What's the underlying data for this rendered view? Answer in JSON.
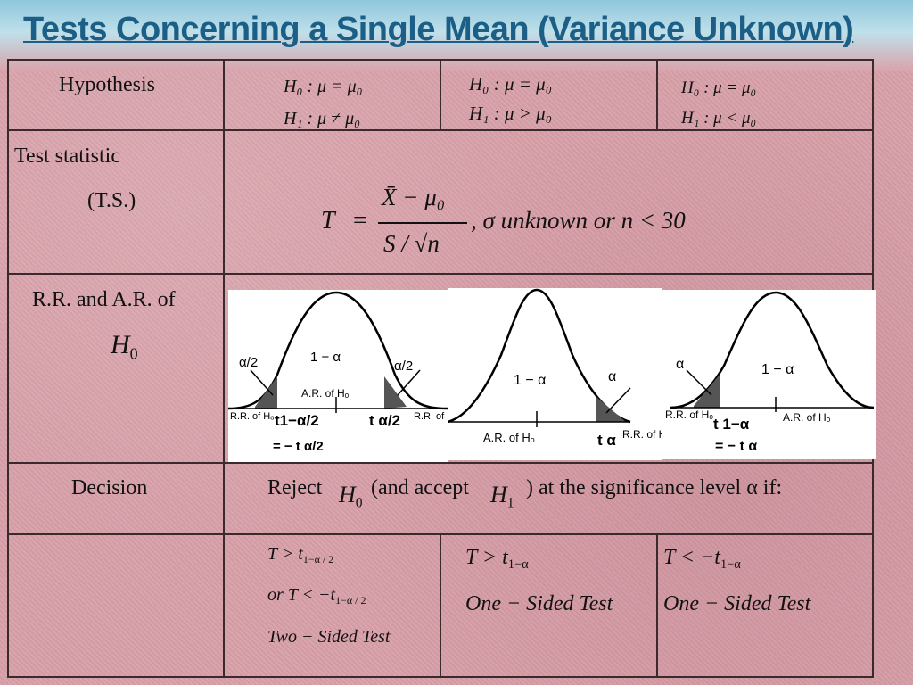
{
  "title": "Tests Concerning a Single Mean (Variance Unknown)",
  "rows": {
    "hypothesis_label": "Hypothesis",
    "test_statistic_label": "Test statistic",
    "ts_abbrev": "(T.S.)",
    "rr_ar_label": "R.R. and A.R. of",
    "decision_label": "Decision"
  },
  "hypotheses": [
    {
      "h0": "H₀ : μ = μ₀",
      "h1": "H₁ : μ ≠ μ₀"
    },
    {
      "h0": "H₀ : μ = μ₀",
      "h1": "H₁ : μ > μ₀"
    },
    {
      "h0": "H₀ : μ = μ₀",
      "h1": "H₁ : μ < μ₀"
    }
  ],
  "test_statistic": {
    "lhs": "T",
    "eq": "=",
    "numerator": "X̄ − μ₀",
    "denominator": "S / √n",
    "condition": ", σ unknown or  n < 30"
  },
  "decision": {
    "reject": "Reject",
    "and_accept": "(and accept",
    "at_level": ") at the significance level α if:"
  },
  "rules": [
    {
      "line1": "T > t",
      "line1_sub": "1−α / 2",
      "line2": "or T < −t",
      "line2_sub": "1−α / 2",
      "type": "Two − Sided Test"
    },
    {
      "line1": "T > t",
      "line1_sub": "1−α",
      "type": "One − Sided Test"
    },
    {
      "line1": "T < −t",
      "line1_sub": "1−α",
      "type": "One − Sided Test"
    }
  ],
  "curves": {
    "two_sided": {
      "center": "1 − α",
      "left_tail": "α/2",
      "right_tail": "α/2",
      "ar": "A.R. of Hₒ",
      "rr_left": "R.R. of Hₒ",
      "rr_right": "R.R. of Hₒ",
      "crit_left": "t1−α/2",
      "crit_left2": "= −  t α/2",
      "crit_right": "t α/2"
    },
    "right_sided": {
      "center": "1 − α",
      "tail": "α",
      "ar": "A.R. of Hₒ",
      "rr": "R.R. of Hₒ",
      "crit": "t α"
    },
    "left_sided": {
      "tail": "α",
      "center": "1 − α",
      "ar": "A.R. of Hₒ",
      "rr": "R.R. of Hₒ",
      "crit": "t 1−α",
      "crit2": "= −  t α"
    }
  }
}
